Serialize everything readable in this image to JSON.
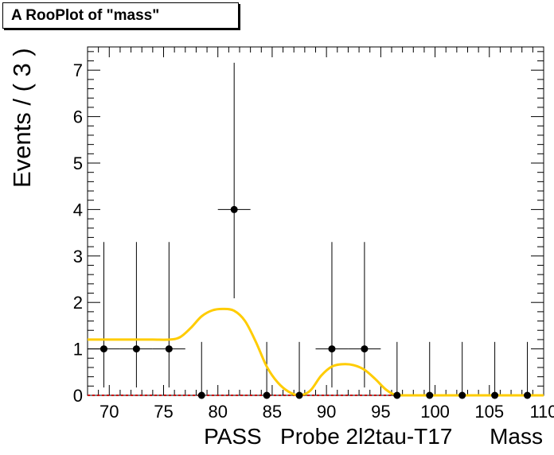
{
  "title": "A RooPlot of \"mass\"",
  "chart_data": {
    "type": "scatter",
    "ylabel": "Events / ( 3 )",
    "xlabel": "PASS   Probe 2l2tau-T17      Mass",
    "xlim": [
      68,
      110
    ],
    "ylim": [
      0,
      7.5
    ],
    "x_ticks": [
      70,
      75,
      80,
      85,
      90,
      95,
      100,
      105,
      110
    ],
    "y_ticks": [
      0,
      1,
      2,
      3,
      4,
      5,
      6,
      7
    ],
    "data_points": [
      {
        "x": 69.5,
        "y": 1,
        "yerr_low": 0.83,
        "yerr_high": 2.3,
        "xerr": 1.5
      },
      {
        "x": 72.5,
        "y": 1,
        "yerr_low": 0.83,
        "yerr_high": 2.3,
        "xerr": 1.5
      },
      {
        "x": 75.5,
        "y": 1,
        "yerr_low": 0.83,
        "yerr_high": 2.3,
        "xerr": 1.5
      },
      {
        "x": 78.5,
        "y": 0,
        "yerr_low": 0,
        "yerr_high": 1.15,
        "xerr": 0
      },
      {
        "x": 81.5,
        "y": 4,
        "yerr_low": 1.91,
        "yerr_high": 3.16,
        "xerr": 1.5
      },
      {
        "x": 84.5,
        "y": 0,
        "yerr_low": 0,
        "yerr_high": 1.15,
        "xerr": 0
      },
      {
        "x": 87.5,
        "y": 0,
        "yerr_low": 0,
        "yerr_high": 1.15,
        "xerr": 0
      },
      {
        "x": 90.5,
        "y": 1,
        "yerr_low": 0.83,
        "yerr_high": 2.3,
        "xerr": 1.5
      },
      {
        "x": 93.5,
        "y": 1,
        "yerr_low": 0.83,
        "yerr_high": 2.3,
        "xerr": 1.5
      },
      {
        "x": 96.5,
        "y": 0,
        "yerr_low": 0,
        "yerr_high": 1.15,
        "xerr": 0
      },
      {
        "x": 99.5,
        "y": 0,
        "yerr_low": 0,
        "yerr_high": 1.15,
        "xerr": 0
      },
      {
        "x": 102.5,
        "y": 0,
        "yerr_low": 0,
        "yerr_high": 1.15,
        "xerr": 0
      },
      {
        "x": 105.5,
        "y": 0,
        "yerr_low": 0,
        "yerr_high": 1.15,
        "xerr": 0
      },
      {
        "x": 108.5,
        "y": 0,
        "yerr_low": 0,
        "yerr_high": 1.15,
        "xerr": 0
      }
    ],
    "fit_curve": [
      [
        68,
        1.2
      ],
      [
        70,
        1.2
      ],
      [
        72,
        1.2
      ],
      [
        74,
        1.2
      ],
      [
        75.5,
        1.2
      ],
      [
        76.5,
        1.25
      ],
      [
        77.5,
        1.45
      ],
      [
        78.5,
        1.7
      ],
      [
        79.5,
        1.83
      ],
      [
        80.5,
        1.86
      ],
      [
        81.5,
        1.82
      ],
      [
        82.5,
        1.6
      ],
      [
        83.5,
        1.15
      ],
      [
        84.5,
        0.62
      ],
      [
        85.5,
        0.28
      ],
      [
        86.5,
        0.08
      ],
      [
        87.5,
        0.0
      ],
      [
        88.5,
        0.1
      ],
      [
        89.5,
        0.42
      ],
      [
        90.5,
        0.62
      ],
      [
        91.5,
        0.67
      ],
      [
        92.5,
        0.65
      ],
      [
        93.5,
        0.55
      ],
      [
        94.5,
        0.35
      ],
      [
        95.5,
        0.12
      ],
      [
        96.5,
        0.0
      ],
      [
        98,
        0.0
      ],
      [
        100,
        0.0
      ],
      [
        105,
        0.0
      ],
      [
        110,
        0.0
      ]
    ],
    "colors": {
      "fit_curve": "#ffcc00",
      "points": "#000000",
      "baseline": "#cc0000",
      "frame": "#000000"
    },
    "grid": false
  }
}
